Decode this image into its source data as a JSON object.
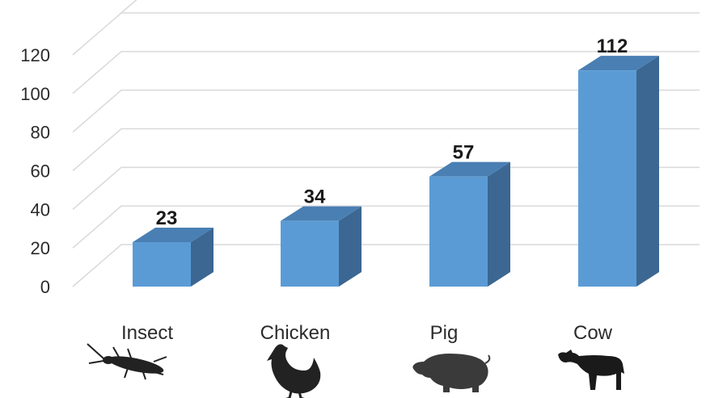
{
  "chart_data": {
    "type": "bar",
    "title": "",
    "xlabel": "",
    "ylabel": "",
    "categories": [
      "Insect",
      "Chicken",
      "Pig",
      "Cow"
    ],
    "values": [
      23,
      34,
      57,
      112
    ],
    "ylim": [
      0,
      120
    ],
    "yticks": [
      "0",
      "20",
      "40",
      "60",
      "80",
      "100",
      "120"
    ],
    "grid": true,
    "legend": "none",
    "style": "3d-column",
    "colors": {
      "front": "#5b9bd5",
      "top": "#4a7fb3",
      "side": "#3b6792",
      "grid": "#d9d9d9"
    },
    "category_icons": [
      "insect-icon",
      "chicken-icon",
      "pig-icon",
      "cow-icon"
    ]
  }
}
